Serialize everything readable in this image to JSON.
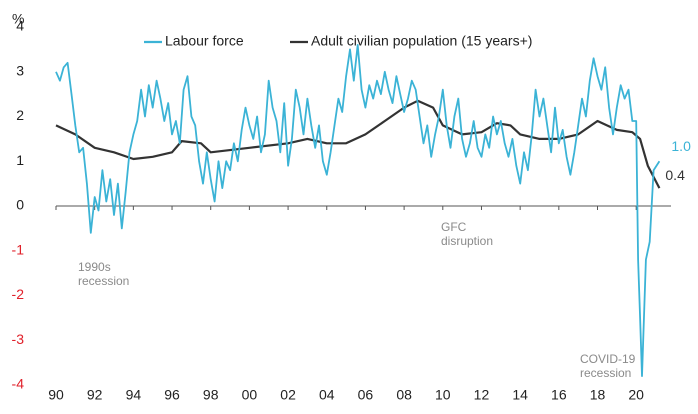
{
  "chart_data": {
    "type": "line",
    "y_unit": "%",
    "xlim": [
      1990,
      2021.8
    ],
    "ylim": [
      -4,
      4
    ],
    "xticks": [
      {
        "value": 1990,
        "label": "90"
      },
      {
        "value": 1992,
        "label": "92"
      },
      {
        "value": 1994,
        "label": "94"
      },
      {
        "value": 1996,
        "label": "96"
      },
      {
        "value": 1998,
        "label": "98"
      },
      {
        "value": 2000,
        "label": "00"
      },
      {
        "value": 2002,
        "label": "02"
      },
      {
        "value": 2004,
        "label": "04"
      },
      {
        "value": 2006,
        "label": "06"
      },
      {
        "value": 2008,
        "label": "08"
      },
      {
        "value": 2010,
        "label": "10"
      },
      {
        "value": 2012,
        "label": "12"
      },
      {
        "value": 2014,
        "label": "14"
      },
      {
        "value": 2016,
        "label": "16"
      },
      {
        "value": 2018,
        "label": "18"
      },
      {
        "value": 2020,
        "label": "20"
      }
    ],
    "yticks": [
      -4,
      -3,
      -2,
      -1,
      0,
      1,
      2,
      3,
      4
    ],
    "grid": false,
    "negative_tick_color": "#e0202a",
    "annotations": [
      [
        "1990s",
        "recession"
      ],
      [
        "GFC",
        "disruption"
      ],
      [
        "COVID-19",
        "recession"
      ]
    ],
    "series": [
      {
        "name": "Labour force",
        "color": "#3bb3d6",
        "last_label": "1.0",
        "x": [
          1990.0,
          1990.2,
          1990.4,
          1990.6,
          1990.8,
          1991.0,
          1991.2,
          1991.4,
          1991.6,
          1991.8,
          1992.0,
          1992.2,
          1992.4,
          1992.6,
          1992.8,
          1993.0,
          1993.2,
          1993.4,
          1993.6,
          1993.8,
          1994.0,
          1994.2,
          1994.4,
          1994.6,
          1994.8,
          1995.0,
          1995.2,
          1995.4,
          1995.6,
          1995.8,
          1996.0,
          1996.2,
          1996.4,
          1996.6,
          1996.8,
          1997.0,
          1997.2,
          1997.4,
          1997.6,
          1997.8,
          1998.0,
          1998.2,
          1998.4,
          1998.6,
          1998.8,
          1999.0,
          1999.2,
          1999.4,
          1999.6,
          1999.8,
          2000.0,
          2000.2,
          2000.4,
          2000.6,
          2000.8,
          2001.0,
          2001.2,
          2001.4,
          2001.6,
          2001.8,
          2002.0,
          2002.2,
          2002.4,
          2002.6,
          2002.8,
          2003.0,
          2003.2,
          2003.4,
          2003.6,
          2003.8,
          2004.0,
          2004.2,
          2004.4,
          2004.6,
          2004.8,
          2005.0,
          2005.2,
          2005.4,
          2005.6,
          2005.8,
          2006.0,
          2006.2,
          2006.4,
          2006.6,
          2006.8,
          2007.0,
          2007.2,
          2007.4,
          2007.6,
          2007.8,
          2008.0,
          2008.2,
          2008.4,
          2008.6,
          2008.8,
          2009.0,
          2009.2,
          2009.4,
          2009.6,
          2009.8,
          2010.0,
          2010.2,
          2010.4,
          2010.6,
          2010.8,
          2011.0,
          2011.2,
          2011.4,
          2011.6,
          2011.8,
          2012.0,
          2012.2,
          2012.4,
          2012.6,
          2012.8,
          2013.0,
          2013.2,
          2013.4,
          2013.6,
          2013.8,
          2014.0,
          2014.2,
          2014.4,
          2014.6,
          2014.8,
          2015.0,
          2015.2,
          2015.4,
          2015.6,
          2015.8,
          2016.0,
          2016.2,
          2016.4,
          2016.6,
          2016.8,
          2017.0,
          2017.2,
          2017.4,
          2017.6,
          2017.8,
          2018.0,
          2018.2,
          2018.4,
          2018.6,
          2018.8,
          2019.0,
          2019.2,
          2019.4,
          2019.6,
          2019.8,
          2020.0,
          2020.1,
          2020.2,
          2020.3,
          2020.5,
          2020.7,
          2020.9,
          2021.2
        ],
        "values": [
          3.0,
          2.8,
          3.1,
          3.2,
          2.5,
          1.8,
          1.2,
          1.3,
          0.5,
          -0.6,
          0.2,
          -0.1,
          0.8,
          0.1,
          0.6,
          -0.2,
          0.5,
          -0.5,
          0.3,
          1.2,
          1.6,
          1.9,
          2.6,
          2.0,
          2.7,
          2.2,
          2.8,
          2.4,
          1.9,
          2.3,
          1.6,
          1.9,
          1.4,
          2.6,
          2.9,
          2.0,
          1.8,
          1.0,
          0.5,
          1.2,
          0.6,
          0.1,
          1.0,
          0.4,
          1.0,
          0.8,
          1.4,
          1.0,
          1.7,
          2.2,
          1.8,
          1.5,
          2.0,
          1.2,
          1.6,
          2.8,
          2.2,
          1.9,
          1.2,
          2.3,
          0.9,
          1.5,
          2.6,
          2.2,
          1.6,
          2.4,
          1.8,
          1.3,
          1.8,
          1.0,
          0.7,
          1.2,
          1.8,
          2.4,
          2.1,
          2.9,
          3.5,
          2.8,
          3.6,
          2.6,
          2.2,
          2.7,
          2.4,
          2.8,
          2.5,
          3.0,
          2.6,
          2.3,
          2.9,
          2.5,
          2.1,
          2.4,
          2.8,
          2.6,
          2.0,
          1.4,
          1.8,
          1.1,
          1.6,
          2.0,
          2.6,
          1.8,
          1.3,
          2.0,
          2.4,
          1.5,
          1.1,
          1.4,
          1.9,
          1.3,
          1.1,
          1.6,
          1.3,
          2.0,
          1.6,
          1.9,
          1.4,
          1.1,
          1.5,
          0.9,
          0.5,
          1.2,
          0.8,
          1.6,
          2.6,
          2.0,
          2.4,
          1.8,
          1.2,
          2.2,
          1.4,
          1.7,
          1.1,
          0.7,
          1.2,
          1.8,
          2.4,
          2.0,
          2.8,
          3.3,
          2.9,
          2.6,
          3.1,
          2.2,
          1.6,
          2.2,
          2.7,
          2.4,
          2.6,
          1.9,
          1.9,
          -1.2,
          -2.5,
          -3.8,
          -1.2,
          -0.8,
          0.8,
          1.0
        ]
      },
      {
        "name": "Adult civilian population (15 years+)",
        "color": "#333333",
        "last_label": "0.4",
        "x": [
          1990,
          1991,
          1992,
          1993,
          1994,
          1995,
          1996,
          1996.5,
          1997.5,
          1998,
          2000,
          2002,
          2003,
          2004,
          2005,
          2006,
          2007,
          2008,
          2008.7,
          2009.5,
          2010,
          2011,
          2012,
          2012.8,
          2013.5,
          2014,
          2015,
          2016,
          2017,
          2018,
          2019,
          2019.8,
          2020.2,
          2020.6,
          2021.2
        ],
        "values": [
          1.8,
          1.6,
          1.3,
          1.2,
          1.05,
          1.1,
          1.2,
          1.45,
          1.4,
          1.2,
          1.3,
          1.4,
          1.5,
          1.4,
          1.4,
          1.6,
          1.9,
          2.2,
          2.35,
          2.2,
          1.8,
          1.6,
          1.65,
          1.85,
          1.8,
          1.6,
          1.5,
          1.5,
          1.6,
          1.9,
          1.7,
          1.65,
          1.5,
          0.9,
          0.4
        ]
      }
    ]
  }
}
